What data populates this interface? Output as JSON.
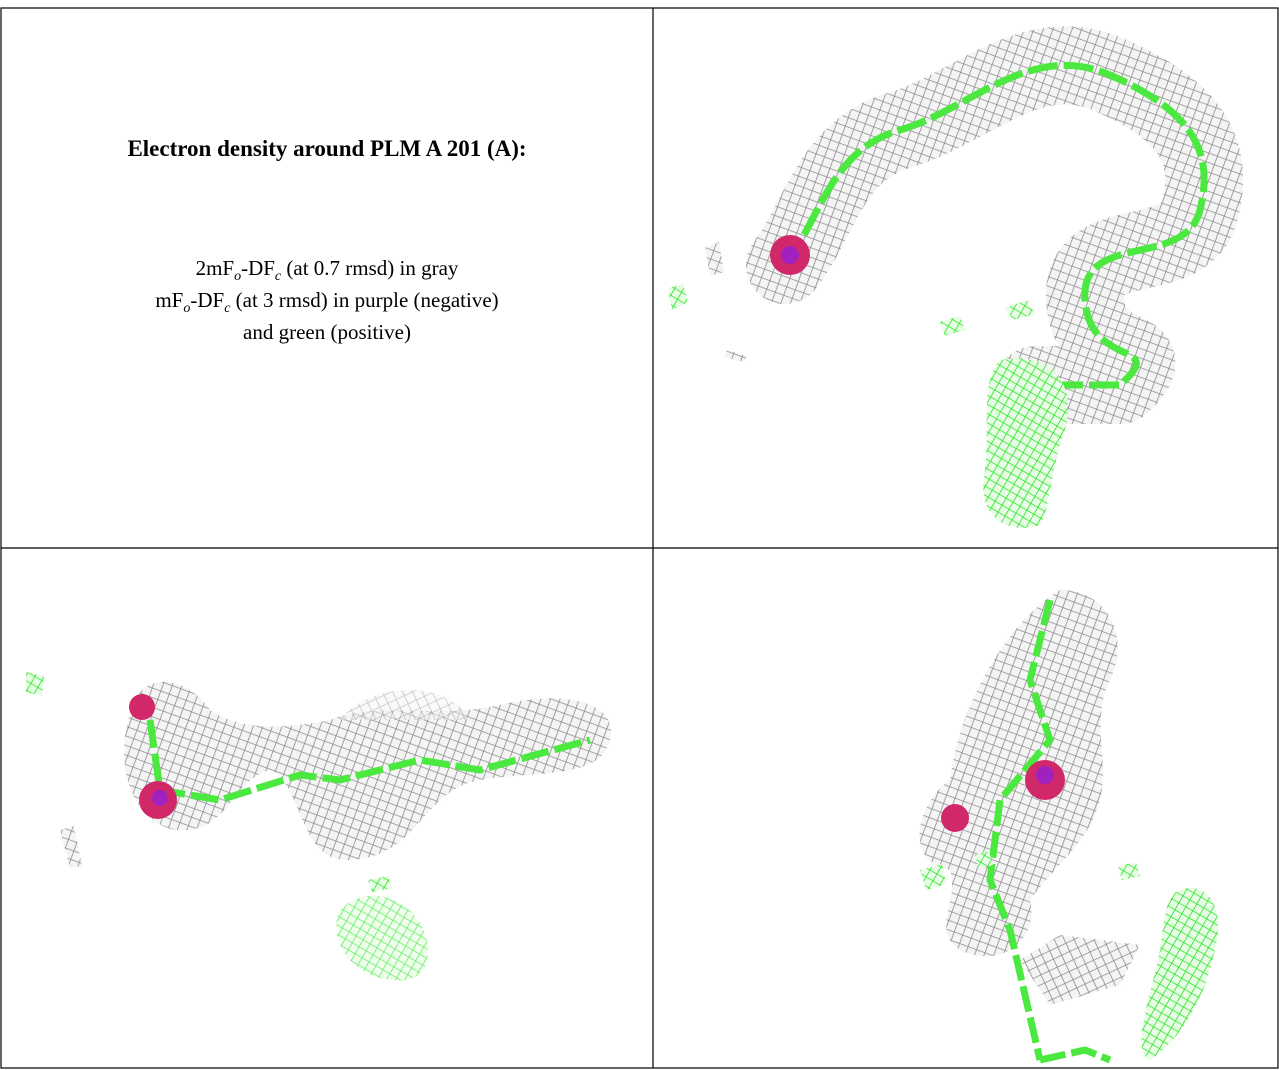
{
  "figure": {
    "title": "Electron density around PLM A 201 (A):",
    "legend": [
      [
        "2mF",
        "o",
        "-DF",
        "c",
        " (at 0.7 rmsd) in gray"
      ],
      [
        "mF",
        "o",
        "-DF",
        "c",
        " (at 3 rmsd) in purple (negative)"
      ],
      [
        "and green (positive)"
      ]
    ]
  }
}
